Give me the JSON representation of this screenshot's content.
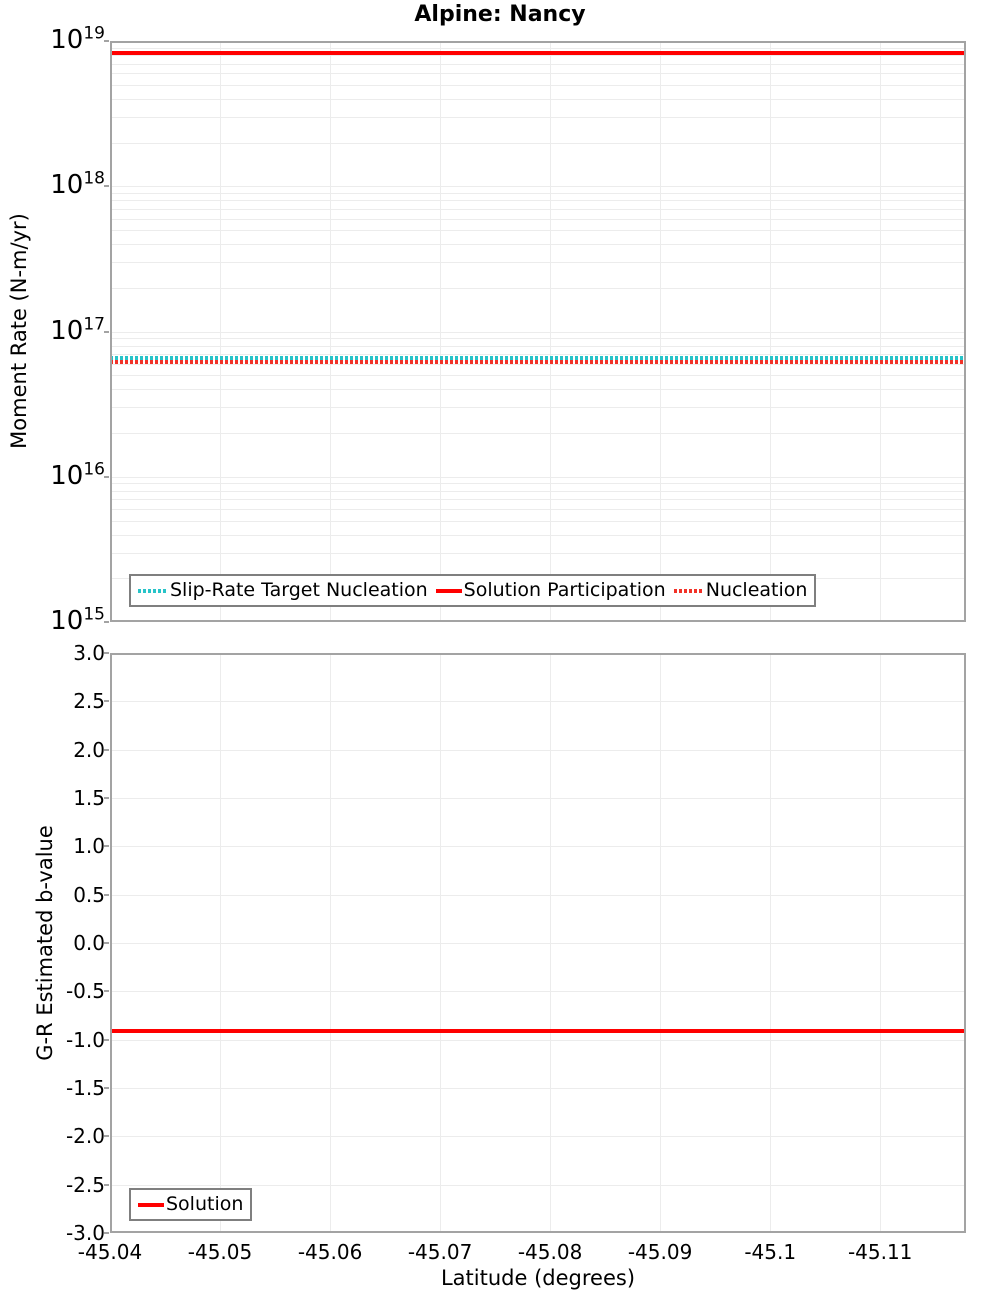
{
  "title": "Alpine: Nancy",
  "colors": {
    "solid_red": "#ff0000",
    "dotted_red": "#f23228",
    "dotted_cyan": "#28c3c8",
    "gridline": "#ececec",
    "plot_border": "#a3a3a3",
    "legend_border": "#7f7f7f"
  },
  "chart_data": [
    {
      "type": "line",
      "title": "Alpine: Nancy",
      "ylabel": "Moment Rate (N-m/yr)",
      "yscale": "log",
      "ylim": [
        1000000000000000.0,
        1e+19
      ],
      "yticks": [
        {
          "mantissa": "10",
          "exponent": "19",
          "value": 1e+19
        },
        {
          "mantissa": "10",
          "exponent": "18",
          "value": 1e+18
        },
        {
          "mantissa": "10",
          "exponent": "17",
          "value": 1e+17
        },
        {
          "mantissa": "10",
          "exponent": "16",
          "value": 1e+16
        },
        {
          "mantissa": "10",
          "exponent": "15",
          "value": 1000000000000000.0
        }
      ],
      "xlim": [
        -45.04,
        -45.1178
      ],
      "grid": true,
      "legend_position": "bottom-left",
      "series": [
        {
          "name": "Slip-Rate Target Nucleation",
          "style": "dotted",
          "color": "#28c3c8",
          "value": 6.6e+16
        },
        {
          "name": "Solution Participation",
          "style": "solid",
          "color": "#ff0000",
          "value": 8.3e+18
        },
        {
          "name": "Nucleation",
          "style": "dotted",
          "color": "#f23228",
          "value": 6.2e+16
        }
      ]
    },
    {
      "type": "line",
      "ylabel": "G-R Estimated b-value",
      "xlabel": "Latitude (degrees)",
      "yscale": "linear",
      "ylim": [
        -3.0,
        3.0
      ],
      "ytick_labels": [
        "3.0",
        "2.5",
        "2.0",
        "1.5",
        "1.0",
        "0.5",
        "0.0",
        "-0.5",
        "-1.0",
        "-1.5",
        "-2.0",
        "-2.5",
        "-3.0"
      ],
      "xlim": [
        -45.04,
        -45.1178
      ],
      "xtick_labels": [
        "-45.04",
        "-45.05",
        "-45.06",
        "-45.07",
        "-45.08",
        "-45.09",
        "-45.1",
        "-45.11"
      ],
      "grid": true,
      "legend_position": "bottom-left",
      "series": [
        {
          "name": "Solution",
          "style": "solid",
          "color": "#ff0000",
          "value": -0.91
        }
      ]
    }
  ]
}
